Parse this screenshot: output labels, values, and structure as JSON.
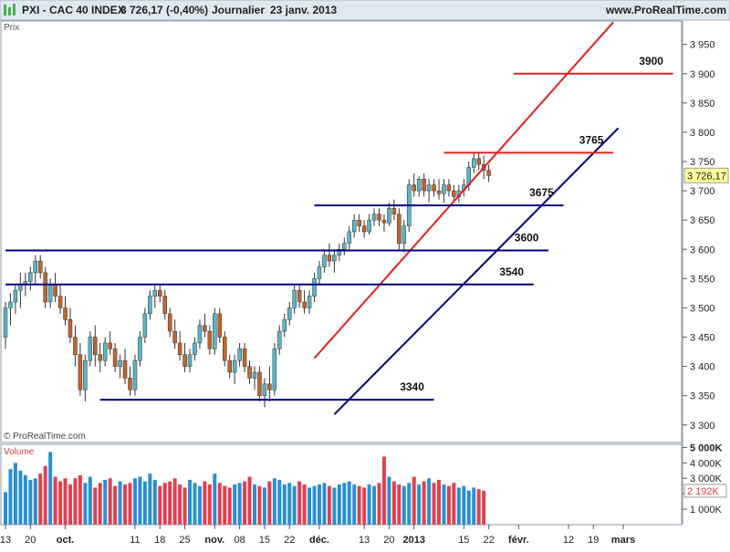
{
  "header": {
    "title": "PXI - CAC 40 INDEX",
    "price_change": "3 726,17 (-0,40%)",
    "period": "Journalier",
    "date": "23 janv. 2013",
    "source": "www.ProRealTime.com"
  },
  "price_panel_label": "Prix",
  "volume_panel_label": "Volume",
  "copyright": "© ProRealTime.com",
  "colors": {
    "up": "#5ab4c8",
    "down": "#c0652a",
    "support_line": "#000080",
    "resistance_line": "#e02020",
    "volume_up": "#2a8fd0",
    "volume_down": "#e04050",
    "header_bg": "#dfe7ef",
    "current_price_badge": "#ffff99"
  },
  "chart_data": {
    "type": "candlestick",
    "price_axis": {
      "ylim": [
        3270,
        3990
      ],
      "ticks": [
        "3 300",
        "3 350",
        "3 400",
        "3 450",
        "3 500",
        "3 550",
        "3 600",
        "3 650",
        "3 700",
        "3 750",
        "3 800",
        "3 850",
        "3 900",
        "3 950"
      ],
      "tick_values": [
        3300,
        3350,
        3400,
        3450,
        3500,
        3550,
        3600,
        3650,
        3700,
        3750,
        3800,
        3850,
        3900,
        3950
      ],
      "current_price_label": "3 726,17",
      "current_price": 3726.17
    },
    "x_axis": {
      "labels": [
        "13",
        "20",
        "oct.",
        "11",
        "18",
        "25",
        "nov.",
        "08",
        "15",
        "22",
        "déc.",
        "13",
        "20",
        "2013",
        "15",
        "22",
        "févr.",
        "12",
        "19",
        "mars"
      ],
      "label_bar_index": [
        0,
        5,
        12,
        26,
        31,
        36,
        42,
        47,
        52,
        57,
        63,
        72,
        77,
        82,
        92,
        97,
        103,
        113,
        118,
        124
      ]
    },
    "candles": [
      [
        3450,
        3510,
        3430,
        3500
      ],
      [
        3500,
        3525,
        3470,
        3510
      ],
      [
        3510,
        3540,
        3490,
        3530
      ],
      [
        3530,
        3560,
        3500,
        3540
      ],
      [
        3540,
        3560,
        3520,
        3545
      ],
      [
        3545,
        3570,
        3530,
        3560
      ],
      [
        3560,
        3590,
        3540,
        3580
      ],
      [
        3580,
        3590,
        3550,
        3560
      ],
      [
        3560,
        3570,
        3500,
        3510
      ],
      [
        3510,
        3550,
        3500,
        3540
      ],
      [
        3540,
        3560,
        3510,
        3520
      ],
      [
        3520,
        3540,
        3490,
        3500
      ],
      [
        3500,
        3520,
        3470,
        3480
      ],
      [
        3480,
        3500,
        3440,
        3450
      ],
      [
        3450,
        3470,
        3400,
        3420
      ],
      [
        3420,
        3440,
        3350,
        3360
      ],
      [
        3360,
        3420,
        3340,
        3410
      ],
      [
        3410,
        3460,
        3400,
        3450
      ],
      [
        3450,
        3470,
        3400,
        3420
      ],
      [
        3420,
        3440,
        3390,
        3410
      ],
      [
        3410,
        3450,
        3400,
        3440
      ],
      [
        3440,
        3460,
        3420,
        3430
      ],
      [
        3430,
        3440,
        3390,
        3400
      ],
      [
        3400,
        3420,
        3380,
        3410
      ],
      [
        3410,
        3430,
        3370,
        3380
      ],
      [
        3380,
        3400,
        3350,
        3360
      ],
      [
        3360,
        3420,
        3350,
        3410
      ],
      [
        3410,
        3460,
        3400,
        3450
      ],
      [
        3450,
        3500,
        3440,
        3490
      ],
      [
        3490,
        3530,
        3480,
        3520
      ],
      [
        3520,
        3540,
        3500,
        3530
      ],
      [
        3530,
        3540,
        3510,
        3520
      ],
      [
        3520,
        3530,
        3480,
        3490
      ],
      [
        3490,
        3500,
        3450,
        3460
      ],
      [
        3460,
        3480,
        3430,
        3440
      ],
      [
        3440,
        3460,
        3410,
        3420
      ],
      [
        3420,
        3440,
        3390,
        3400
      ],
      [
        3400,
        3430,
        3390,
        3420
      ],
      [
        3420,
        3450,
        3410,
        3440
      ],
      [
        3440,
        3480,
        3430,
        3470
      ],
      [
        3470,
        3490,
        3450,
        3460
      ],
      [
        3460,
        3470,
        3420,
        3430
      ],
      [
        3430,
        3500,
        3420,
        3490
      ],
      [
        3490,
        3500,
        3440,
        3450
      ],
      [
        3450,
        3460,
        3400,
        3410
      ],
      [
        3410,
        3420,
        3380,
        3390
      ],
      [
        3390,
        3420,
        3370,
        3410
      ],
      [
        3410,
        3440,
        3400,
        3430
      ],
      [
        3430,
        3440,
        3390,
        3400
      ],
      [
        3400,
        3410,
        3370,
        3380
      ],
      [
        3380,
        3400,
        3360,
        3390
      ],
      [
        3390,
        3400,
        3340,
        3350
      ],
      [
        3350,
        3380,
        3330,
        3370
      ],
      [
        3370,
        3400,
        3340,
        3360
      ],
      [
        3360,
        3440,
        3350,
        3430
      ],
      [
        3430,
        3470,
        3420,
        3460
      ],
      [
        3460,
        3490,
        3450,
        3480
      ],
      [
        3480,
        3510,
        3470,
        3500
      ],
      [
        3500,
        3540,
        3490,
        3530
      ],
      [
        3530,
        3540,
        3500,
        3510
      ],
      [
        3510,
        3530,
        3490,
        3500
      ],
      [
        3500,
        3530,
        3490,
        3520
      ],
      [
        3520,
        3560,
        3510,
        3550
      ],
      [
        3550,
        3580,
        3540,
        3570
      ],
      [
        3570,
        3600,
        3560,
        3590
      ],
      [
        3590,
        3610,
        3570,
        3580
      ],
      [
        3580,
        3600,
        3560,
        3590
      ],
      [
        3590,
        3610,
        3580,
        3600
      ],
      [
        3600,
        3620,
        3590,
        3610
      ],
      [
        3610,
        3640,
        3600,
        3630
      ],
      [
        3630,
        3660,
        3620,
        3650
      ],
      [
        3650,
        3660,
        3630,
        3640
      ],
      [
        3640,
        3650,
        3620,
        3630
      ],
      [
        3630,
        3660,
        3625,
        3650
      ],
      [
        3650,
        3670,
        3640,
        3660
      ],
      [
        3660,
        3670,
        3640,
        3650
      ],
      [
        3650,
        3660,
        3630,
        3645
      ],
      [
        3645,
        3680,
        3640,
        3670
      ],
      [
        3670,
        3685,
        3650,
        3660
      ],
      [
        3660,
        3670,
        3600,
        3610
      ],
      [
        3610,
        3650,
        3595,
        3640
      ],
      [
        3640,
        3720,
        3630,
        3710
      ],
      [
        3710,
        3730,
        3690,
        3700
      ],
      [
        3700,
        3725,
        3690,
        3720
      ],
      [
        3720,
        3730,
        3690,
        3700
      ],
      [
        3700,
        3720,
        3680,
        3710
      ],
      [
        3710,
        3720,
        3690,
        3700
      ],
      [
        3700,
        3720,
        3685,
        3695
      ],
      [
        3695,
        3720,
        3680,
        3710
      ],
      [
        3710,
        3720,
        3690,
        3700
      ],
      [
        3700,
        3710,
        3680,
        3690
      ],
      [
        3690,
        3710,
        3680,
        3700
      ],
      [
        3700,
        3720,
        3690,
        3710
      ],
      [
        3710,
        3750,
        3700,
        3740
      ],
      [
        3740,
        3765,
        3730,
        3755
      ],
      [
        3755,
        3765,
        3735,
        3745
      ],
      [
        3745,
        3760,
        3720,
        3735
      ],
      [
        3735,
        3745,
        3715,
        3726
      ]
    ],
    "volume_axis": {
      "ylim": [
        0,
        5200
      ],
      "ticks": [
        "1 000K",
        "2 000K",
        "3 000K",
        "4 000K",
        "5 000K"
      ],
      "tick_values": [
        1000,
        2000,
        3000,
        4000,
        5000
      ],
      "current_volume_label": "2 192K",
      "current_volume": 2192
    },
    "volume": [
      2100,
      3600,
      4000,
      3500,
      3200,
      2900,
      3000,
      3300,
      3800,
      4700,
      3100,
      2800,
      3000,
      2600,
      3000,
      3200,
      2700,
      3100,
      2400,
      2700,
      2900,
      3000,
      2500,
      2800,
      2600,
      2700,
      3000,
      3100,
      2800,
      3300,
      2900,
      2500,
      2700,
      2800,
      3000,
      2600,
      2400,
      2900,
      2700,
      2500,
      2800,
      2600,
      3300,
      2700,
      2500,
      2400,
      2600,
      2700,
      2800,
      3100,
      2600,
      2500,
      2400,
      2800,
      3000,
      2900,
      2600,
      2700,
      2500,
      2800,
      2600,
      2400,
      2500,
      2600,
      2700,
      2500,
      2400,
      2600,
      2700,
      2800,
      2600,
      2500,
      2400,
      2600,
      2500,
      2700,
      4400,
      3100,
      2800,
      2600,
      2500,
      2700,
      3100,
      2600,
      2800,
      3000,
      2700,
      2900,
      2600,
      2500,
      2700,
      2400,
      2500,
      2200,
      2400,
      2300,
      2192
    ],
    "trendlines": [
      {
        "label": "",
        "type": "resistance",
        "from": [
          62,
          3414
        ],
        "to": [
          122,
          3988
        ]
      },
      {
        "label": "",
        "type": "support",
        "from": [
          66,
          3318
        ],
        "to": [
          123,
          3807
        ]
      },
      {
        "label": "3900",
        "type": "horizontal_resistance",
        "from": [
          102,
          3900
        ],
        "to": [
          134,
          3900
        ]
      },
      {
        "label": "3765",
        "type": "horizontal_resistance",
        "from": [
          88,
          3765
        ],
        "to": [
          122,
          3765
        ]
      },
      {
        "label": "3675",
        "type": "horizontal_support",
        "from": [
          62,
          3675
        ],
        "to": [
          112,
          3675
        ]
      },
      {
        "label": "3600",
        "type": "horizontal_support",
        "from": [
          0,
          3598
        ],
        "to": [
          109,
          3598
        ]
      },
      {
        "label": "3540",
        "type": "horizontal_support",
        "from": [
          0,
          3540
        ],
        "to": [
          106,
          3540
        ]
      },
      {
        "label": "3340",
        "type": "horizontal_support",
        "from": [
          19,
          3343
        ],
        "to": [
          86,
          3343
        ]
      }
    ]
  }
}
